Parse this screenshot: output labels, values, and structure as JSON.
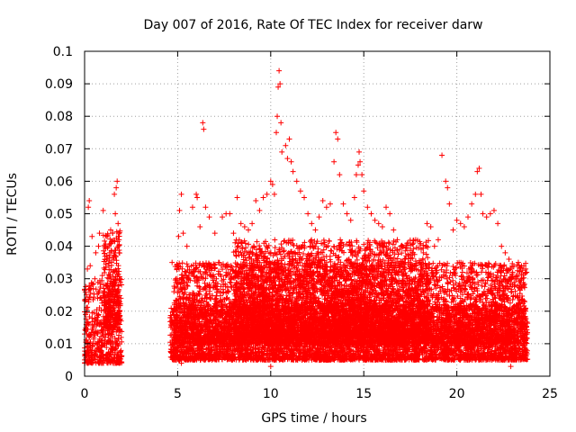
{
  "chart_data": {
    "type": "scatter",
    "title": "Day 007 of 2016, Rate Of TEC Index for receiver darw",
    "xlabel": "GPS time / hours",
    "ylabel": "ROTI / TECUs",
    "xlim": [
      0,
      25
    ],
    "ylim": [
      0,
      0.1
    ],
    "xticks": [
      0,
      5,
      10,
      15,
      20,
      25
    ],
    "xtick_labels": [
      "0",
      "5",
      "10",
      "15",
      "20",
      "25"
    ],
    "yticks": [
      0,
      0.01,
      0.02,
      0.03,
      0.04,
      0.05,
      0.06,
      0.07,
      0.08,
      0.09,
      0.1
    ],
    "ytick_labels": [
      "0",
      "0.01",
      "0.02",
      "0.03",
      "0.04",
      "0.05",
      "0.06",
      "0.07",
      "0.08",
      "0.09",
      "0.1"
    ],
    "grid": true,
    "marker": "plus",
    "color": "#ff0000",
    "series": [
      {
        "points": [
          [
            0.05,
            0.019
          ],
          [
            0.1,
            0.025
          ],
          [
            0.15,
            0.033
          ],
          [
            0.2,
            0.052
          ],
          [
            0.25,
            0.054
          ],
          [
            0.3,
            0.034
          ],
          [
            0.35,
            0.027
          ],
          [
            0.4,
            0.043
          ],
          [
            0.5,
            0.012
          ],
          [
            0.55,
            0.03
          ],
          [
            0.6,
            0.038
          ],
          [
            0.7,
            0.024
          ],
          [
            0.75,
            0.04
          ],
          [
            0.8,
            0.044
          ],
          [
            0.9,
            0.016
          ],
          [
            0.95,
            0.031
          ],
          [
            1.0,
            0.051
          ],
          [
            1.05,
            0.026
          ],
          [
            1.1,
            0.036
          ],
          [
            1.2,
            0.043
          ],
          [
            1.3,
            0.04
          ],
          [
            1.35,
            0.038
          ],
          [
            1.4,
            0.045
          ],
          [
            1.45,
            0.035
          ],
          [
            1.5,
            0.044
          ],
          [
            1.55,
            0.036
          ],
          [
            1.6,
            0.056
          ],
          [
            1.65,
            0.05
          ],
          [
            1.7,
            0.058
          ],
          [
            1.75,
            0.06
          ],
          [
            1.8,
            0.047
          ],
          [
            1.85,
            0.042
          ],
          [
            1.9,
            0.03
          ],
          [
            1.95,
            0.024
          ],
          [
            4.7,
            0.035
          ],
          [
            4.8,
            0.026
          ],
          [
            4.9,
            0.03
          ],
          [
            5.05,
            0.043
          ],
          [
            5.1,
            0.051
          ],
          [
            5.2,
            0.056
          ],
          [
            5.3,
            0.044
          ],
          [
            5.5,
            0.04
          ],
          [
            5.6,
            0.031
          ],
          [
            5.8,
            0.052
          ],
          [
            6.0,
            0.056
          ],
          [
            6.05,
            0.055
          ],
          [
            6.2,
            0.046
          ],
          [
            6.35,
            0.078
          ],
          [
            6.4,
            0.076
          ],
          [
            6.5,
            0.052
          ],
          [
            6.7,
            0.049
          ],
          [
            7.0,
            0.044
          ],
          [
            7.2,
            0.035
          ],
          [
            7.4,
            0.049
          ],
          [
            7.6,
            0.05
          ],
          [
            7.8,
            0.05
          ],
          [
            8.0,
            0.044
          ],
          [
            8.2,
            0.055
          ],
          [
            8.4,
            0.047
          ],
          [
            8.6,
            0.046
          ],
          [
            8.8,
            0.045
          ],
          [
            9.0,
            0.047
          ],
          [
            9.2,
            0.054
          ],
          [
            9.4,
            0.051
          ],
          [
            9.6,
            0.055
          ],
          [
            9.8,
            0.056
          ],
          [
            10.0,
            0.06
          ],
          [
            10.1,
            0.059
          ],
          [
            10.2,
            0.056
          ],
          [
            10.3,
            0.075
          ],
          [
            10.35,
            0.08
          ],
          [
            10.4,
            0.089
          ],
          [
            10.45,
            0.094
          ],
          [
            10.5,
            0.09
          ],
          [
            10.55,
            0.078
          ],
          [
            10.6,
            0.069
          ],
          [
            10.8,
            0.071
          ],
          [
            10.9,
            0.067
          ],
          [
            11.0,
            0.073
          ],
          [
            11.1,
            0.066
          ],
          [
            11.2,
            0.063
          ],
          [
            11.4,
            0.06
          ],
          [
            11.6,
            0.057
          ],
          [
            11.8,
            0.055
          ],
          [
            12.0,
            0.05
          ],
          [
            12.2,
            0.047
          ],
          [
            12.4,
            0.045
          ],
          [
            12.6,
            0.049
          ],
          [
            12.8,
            0.054
          ],
          [
            13.0,
            0.052
          ],
          [
            13.2,
            0.053
          ],
          [
            13.4,
            0.066
          ],
          [
            13.5,
            0.075
          ],
          [
            13.6,
            0.073
          ],
          [
            13.7,
            0.062
          ],
          [
            13.9,
            0.053
          ],
          [
            14.1,
            0.05
          ],
          [
            14.3,
            0.048
          ],
          [
            14.5,
            0.055
          ],
          [
            14.6,
            0.062
          ],
          [
            14.7,
            0.065
          ],
          [
            14.75,
            0.069
          ],
          [
            14.8,
            0.066
          ],
          [
            14.9,
            0.062
          ],
          [
            15.0,
            0.057
          ],
          [
            15.2,
            0.052
          ],
          [
            15.4,
            0.05
          ],
          [
            15.6,
            0.048
          ],
          [
            15.8,
            0.047
          ],
          [
            16.0,
            0.046
          ],
          [
            16.2,
            0.052
          ],
          [
            16.4,
            0.05
          ],
          [
            16.6,
            0.045
          ],
          [
            16.8,
            0.042
          ],
          [
            17.0,
            0.04
          ],
          [
            17.2,
            0.036
          ],
          [
            17.4,
            0.041
          ],
          [
            17.6,
            0.038
          ],
          [
            17.8,
            0.034
          ],
          [
            18.0,
            0.035
          ],
          [
            18.2,
            0.038
          ],
          [
            18.4,
            0.047
          ],
          [
            18.6,
            0.046
          ],
          [
            18.8,
            0.04
          ],
          [
            19.0,
            0.042
          ],
          [
            19.2,
            0.068
          ],
          [
            19.4,
            0.06
          ],
          [
            19.5,
            0.058
          ],
          [
            19.6,
            0.053
          ],
          [
            19.8,
            0.045
          ],
          [
            20.0,
            0.048
          ],
          [
            20.2,
            0.047
          ],
          [
            20.4,
            0.046
          ],
          [
            20.6,
            0.049
          ],
          [
            20.8,
            0.053
          ],
          [
            21.0,
            0.056
          ],
          [
            21.1,
            0.063
          ],
          [
            21.2,
            0.064
          ],
          [
            21.3,
            0.056
          ],
          [
            21.4,
            0.05
          ],
          [
            21.6,
            0.049
          ],
          [
            21.8,
            0.05
          ],
          [
            22.0,
            0.051
          ],
          [
            22.2,
            0.047
          ],
          [
            22.4,
            0.04
          ],
          [
            22.6,
            0.038
          ],
          [
            22.8,
            0.036
          ],
          [
            23.0,
            0.032
          ],
          [
            23.2,
            0.03
          ],
          [
            23.4,
            0.028
          ],
          [
            23.6,
            0.034
          ],
          [
            23.7,
            0.033
          ],
          [
            23.75,
            0.032
          ],
          [
            10.0,
            0.003
          ],
          [
            5.2,
            0.004
          ],
          [
            22.9,
            0.003
          ]
        ],
        "bands": [
          {
            "x": [
              0.0,
              2.0
            ],
            "y": [
              0.004,
              0.03
            ]
          },
          {
            "x": [
              1.0,
              1.9
            ],
            "y": [
              0.015,
              0.045
            ]
          },
          {
            "x": [
              4.6,
              23.8
            ],
            "y": [
              0.005,
              0.022
            ]
          },
          {
            "x": [
              4.8,
              23.7
            ],
            "y": [
              0.01,
              0.035
            ]
          },
          {
            "x": [
              8.0,
              18.5
            ],
            "y": [
              0.012,
              0.042
            ]
          }
        ]
      }
    ]
  }
}
